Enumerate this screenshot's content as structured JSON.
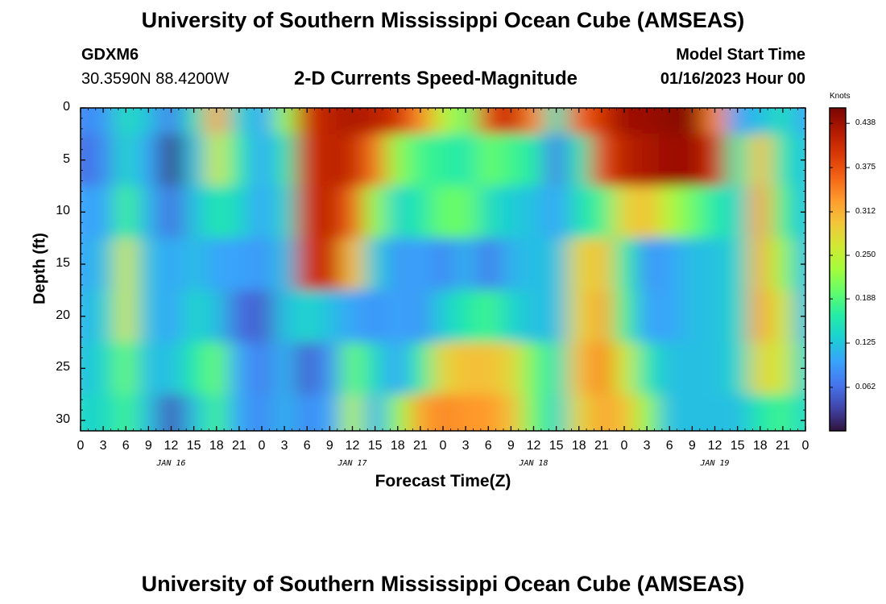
{
  "header": {
    "title": "University of Southern Mississippi Ocean Cube (AMSEAS)",
    "station": "GDXM6",
    "location": "30.3590N  88.4200W",
    "subtitle": "2-D Currents Speed-Magnitude",
    "model_start_label": "Model Start Time",
    "model_start_value": "01/16/2023 Hour 00",
    "footer_title": "University of Southern Mississippi Ocean Cube (AMSEAS)"
  },
  "chart_data": {
    "type": "heatmap",
    "xlabel": "Forecast Time(Z)",
    "ylabel": "Depth (ft)",
    "x_unit": "hours from 01/16/2023 00Z",
    "xlim": [
      0,
      96
    ],
    "ylim": [
      31,
      0
    ],
    "x_tick_labels": [
      "0",
      "3",
      "6",
      "9",
      "12",
      "15",
      "18",
      "21",
      "0",
      "3",
      "6",
      "9",
      "12",
      "15",
      "18",
      "21",
      "0",
      "3",
      "6",
      "9",
      "12",
      "15",
      "18",
      "21",
      "0",
      "3",
      "6",
      "9",
      "12",
      "15",
      "18",
      "21",
      "0"
    ],
    "y_ticks": [
      0,
      5,
      10,
      15,
      20,
      25,
      30
    ],
    "date_labels": [
      {
        "text": "JAN 16",
        "hour": 12
      },
      {
        "text": "JAN 17",
        "hour": 36
      },
      {
        "text": "JAN 18",
        "hour": 60
      },
      {
        "text": "JAN 19",
        "hour": 84
      }
    ],
    "colorbar": {
      "unit": "Knots",
      "min": 0.0,
      "max": 0.46,
      "ticks": [
        0.062,
        0.125,
        0.188,
        0.25,
        0.312,
        0.375,
        0.438
      ],
      "tick_labels": [
        "0.062",
        "0.125",
        "0.188",
        "0.250",
        "0.312",
        "0.375",
        "0.438"
      ],
      "colormap": [
        "#30123b",
        "#4145ab",
        "#4675ed",
        "#39a2fc",
        "#1bcfd4",
        "#24eca6",
        "#61fc6c",
        "#a4fc3b",
        "#d1e834",
        "#f3c63a",
        "#fe9b2d",
        "#f36315",
        "#d93806",
        "#b11901",
        "#7a0402"
      ]
    },
    "x_hours": [
      0,
      3,
      6,
      9,
      12,
      15,
      18,
      21,
      24,
      27,
      30,
      33,
      36,
      39,
      42,
      45,
      48,
      51,
      54,
      57,
      60,
      63,
      66,
      69,
      72,
      75,
      78,
      81,
      84,
      87,
      90,
      93,
      96
    ],
    "depths_ft": [
      0,
      5,
      10,
      15,
      20,
      25,
      30
    ],
    "speed_knots": [
      [
        0.08,
        0.09,
        0.15,
        0.12,
        0.07,
        0.15,
        0.32,
        0.14,
        0.1,
        0.22,
        0.4,
        0.42,
        0.43,
        0.42,
        0.4,
        0.34,
        0.25,
        0.2,
        0.38,
        0.41,
        0.34,
        0.15,
        0.36,
        0.4,
        0.44,
        0.44,
        0.45,
        0.45,
        0.34,
        0.1,
        0.12,
        0.15,
        0.1
      ],
      [
        0.06,
        0.08,
        0.14,
        0.1,
        0.02,
        0.12,
        0.26,
        0.16,
        0.1,
        0.16,
        0.4,
        0.42,
        0.41,
        0.35,
        0.22,
        0.18,
        0.17,
        0.16,
        0.2,
        0.18,
        0.16,
        0.07,
        0.16,
        0.38,
        0.42,
        0.43,
        0.44,
        0.44,
        0.4,
        0.16,
        0.3,
        0.16,
        0.12
      ],
      [
        0.1,
        0.1,
        0.18,
        0.11,
        0.06,
        0.12,
        0.16,
        0.14,
        0.1,
        0.14,
        0.4,
        0.42,
        0.36,
        0.22,
        0.14,
        0.16,
        0.2,
        0.2,
        0.15,
        0.13,
        0.12,
        0.1,
        0.15,
        0.18,
        0.28,
        0.3,
        0.24,
        0.2,
        0.16,
        0.14,
        0.32,
        0.18,
        0.12
      ],
      [
        0.1,
        0.12,
        0.26,
        0.12,
        0.1,
        0.12,
        0.1,
        0.1,
        0.09,
        0.12,
        0.4,
        0.41,
        0.3,
        0.13,
        0.09,
        0.1,
        0.08,
        0.11,
        0.07,
        0.11,
        0.12,
        0.12,
        0.28,
        0.3,
        0.17,
        0.09,
        0.1,
        0.12,
        0.12,
        0.14,
        0.31,
        0.22,
        0.12
      ],
      [
        0.11,
        0.13,
        0.26,
        0.12,
        0.1,
        0.14,
        0.12,
        0.06,
        0.05,
        0.12,
        0.14,
        0.12,
        0.1,
        0.09,
        0.1,
        0.09,
        0.13,
        0.16,
        0.18,
        0.14,
        0.12,
        0.12,
        0.28,
        0.32,
        0.18,
        0.1,
        0.1,
        0.12,
        0.12,
        0.14,
        0.32,
        0.26,
        0.12
      ],
      [
        0.12,
        0.14,
        0.2,
        0.12,
        0.12,
        0.16,
        0.2,
        0.1,
        0.07,
        0.11,
        0.05,
        0.09,
        0.2,
        0.14,
        0.1,
        0.17,
        0.28,
        0.3,
        0.3,
        0.28,
        0.2,
        0.15,
        0.3,
        0.34,
        0.26,
        0.16,
        0.12,
        0.12,
        0.12,
        0.14,
        0.28,
        0.26,
        0.14
      ],
      [
        0.14,
        0.14,
        0.18,
        0.12,
        0.04,
        0.12,
        0.18,
        0.1,
        0.08,
        0.11,
        0.08,
        0.1,
        0.24,
        0.11,
        0.22,
        0.32,
        0.34,
        0.33,
        0.33,
        0.3,
        0.2,
        0.14,
        0.28,
        0.32,
        0.3,
        0.22,
        0.12,
        0.12,
        0.12,
        0.12,
        0.16,
        0.18,
        0.14
      ]
    ]
  }
}
